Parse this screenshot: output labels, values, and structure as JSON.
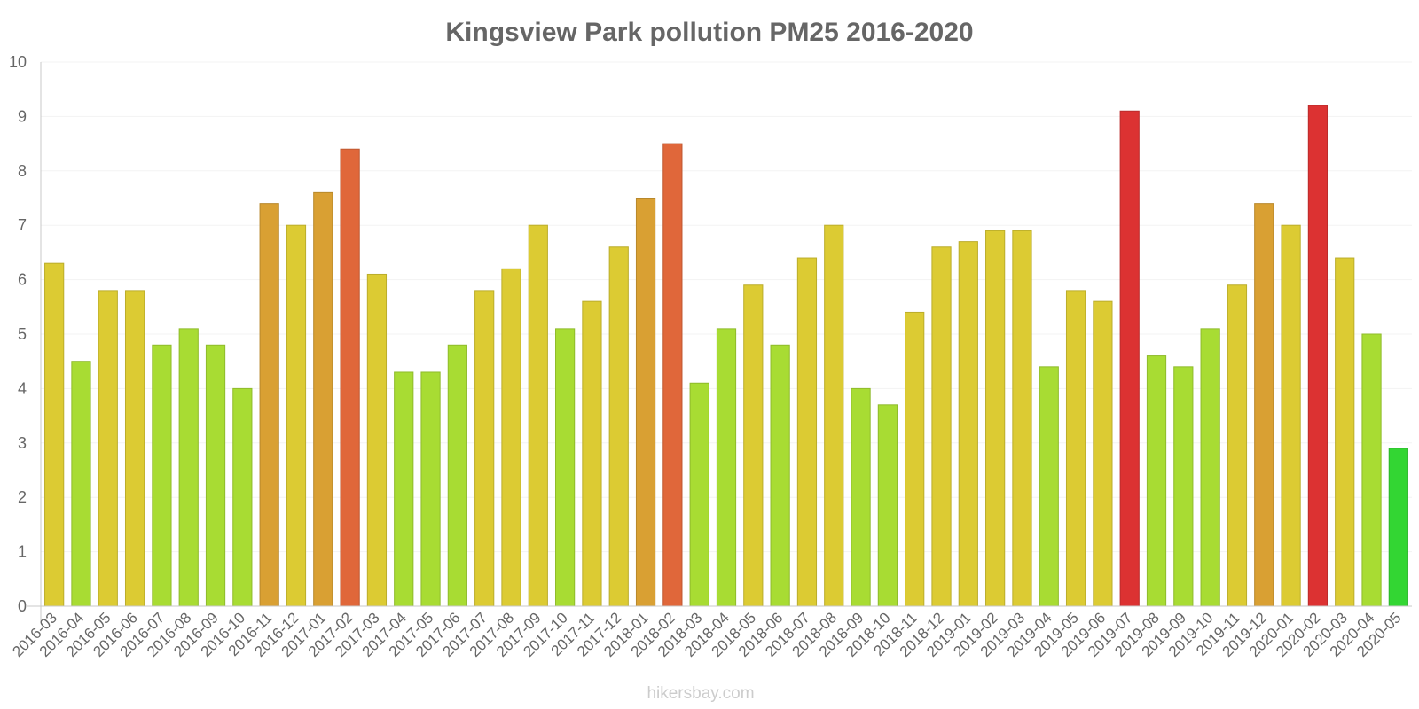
{
  "chart_data": {
    "type": "bar",
    "title": "Kingsview Park pollution PM25 2016-2020",
    "xlabel": "",
    "ylabel": "",
    "ylim": [
      0,
      10
    ],
    "yticks": [
      0,
      1,
      2,
      3,
      4,
      5,
      6,
      7,
      8,
      9,
      10
    ],
    "grid": true,
    "legend": "none",
    "categories": [
      "2016-03",
      "2016-04",
      "2016-05",
      "2016-06",
      "2016-07",
      "2016-08",
      "2016-09",
      "2016-10",
      "2016-11",
      "2016-12",
      "2017-01",
      "2017-02",
      "2017-03",
      "2017-04",
      "2017-05",
      "2017-06",
      "2017-07",
      "2017-08",
      "2017-09",
      "2017-10",
      "2017-11",
      "2017-12",
      "2018-01",
      "2018-02",
      "2018-03",
      "2018-04",
      "2018-05",
      "2018-06",
      "2018-07",
      "2018-08",
      "2018-09",
      "2018-10",
      "2018-11",
      "2018-12",
      "2019-01",
      "2019-02",
      "2019-03",
      "2019-04",
      "2019-05",
      "2019-06",
      "2019-07",
      "2019-08",
      "2019-09",
      "2019-10",
      "2019-11",
      "2019-12",
      "2020-01",
      "2020-02",
      "2020-03",
      "2020-04",
      "2020-05"
    ],
    "values": [
      6.3,
      4.5,
      5.8,
      5.8,
      4.8,
      5.1,
      4.8,
      4.0,
      7.4,
      7.0,
      7.6,
      8.4,
      6.1,
      4.3,
      4.3,
      4.8,
      5.8,
      6.2,
      7.0,
      5.1,
      5.6,
      6.6,
      7.5,
      8.5,
      4.1,
      5.1,
      5.9,
      4.8,
      6.4,
      7.0,
      4.0,
      3.7,
      5.4,
      6.6,
      6.7,
      6.9,
      6.9,
      4.4,
      5.8,
      5.6,
      9.1,
      4.6,
      4.4,
      5.1,
      5.9,
      7.4,
      7.0,
      9.2,
      6.4,
      5.0,
      2.9
    ],
    "colors": {
      "low": "#33d633",
      "mid_low": "#a8dc33",
      "mid": "#dccb33",
      "high": "#d9a033",
      "very_high": "#e0673a",
      "max": "#dc3232"
    }
  },
  "footer": {
    "credit": "hikersbay.com"
  }
}
